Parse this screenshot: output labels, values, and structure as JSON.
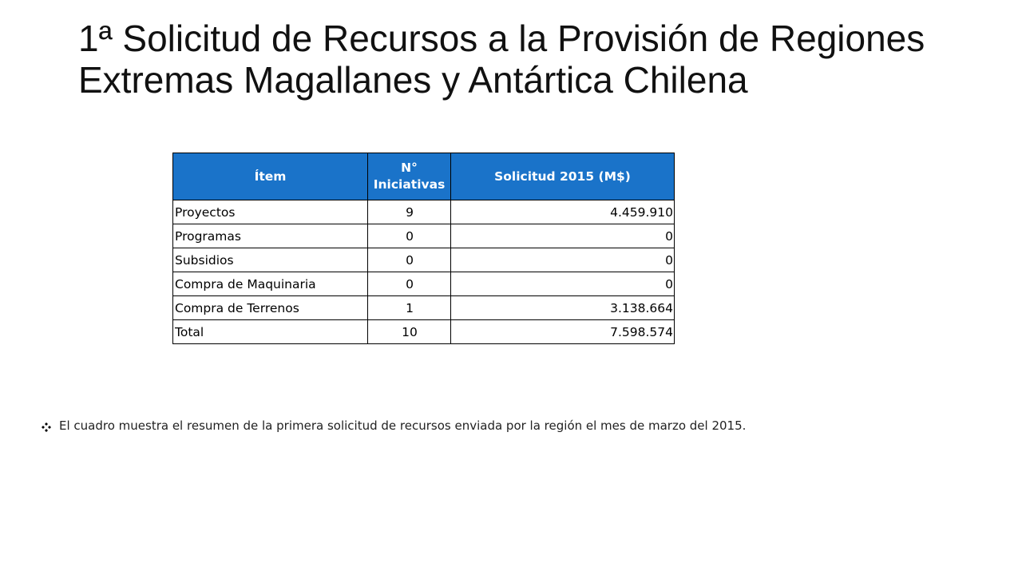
{
  "slide": {
    "title": "1ª Solicitud de Recursos a la Provisión de Regiones Extremas Magallanes y Antártica Chilena"
  },
  "table": {
    "header_color": "#1a73c9",
    "columns": [
      "Ítem",
      "N° Iniciativas",
      "Solicitud  2015 (M$)"
    ],
    "rows": [
      {
        "item": "Proyectos",
        "count": "9",
        "amount": "4.459.910"
      },
      {
        "item": "Programas",
        "count": "0",
        "amount": "0"
      },
      {
        "item": "Subsidios",
        "count": "0",
        "amount": "0"
      },
      {
        "item": "Compra de Maquinaria",
        "count": "0",
        "amount": "0"
      },
      {
        "item": "Compra de Terrenos",
        "count": "1",
        "amount": "3.138.664"
      },
      {
        "item": "Total",
        "count": "10",
        "amount": "7.598.574"
      }
    ]
  },
  "note": {
    "icon": "four-diamond-bullet-icon",
    "text": "El cuadro muestra el resumen de la primera solicitud de recursos enviada por la región el mes de marzo del 2015."
  }
}
